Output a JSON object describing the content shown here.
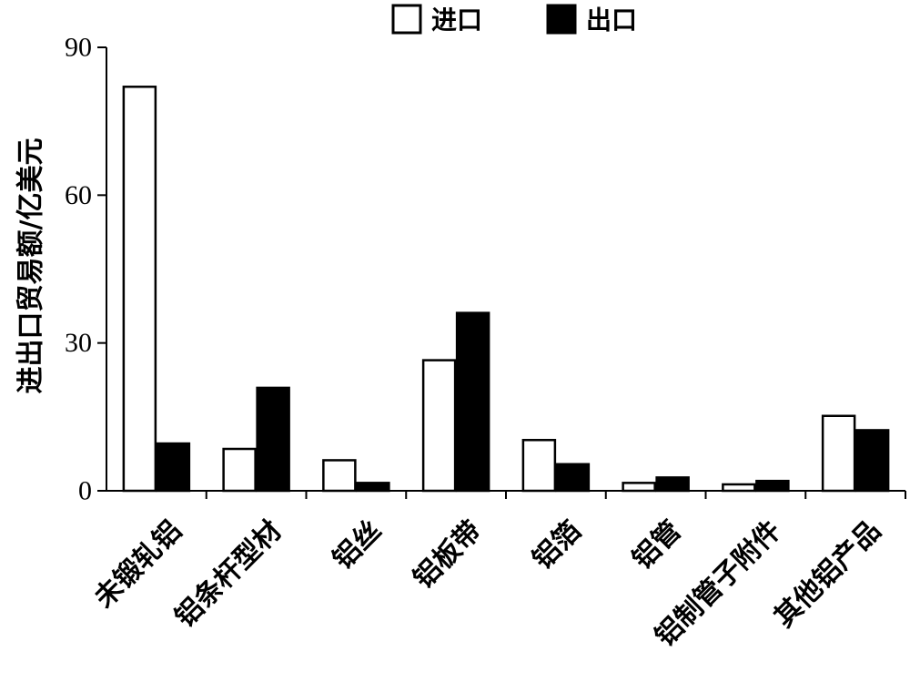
{
  "chart_data": {
    "type": "bar",
    "categories": [
      "未锻轧铝",
      "铝条杆型材",
      "铝丝",
      "铝板带",
      "铝箔",
      "铝管",
      "铝制管子附件",
      "其他铝产品"
    ],
    "series": [
      {
        "name": "进口",
        "values": [
          82,
          8.5,
          6.2,
          26.5,
          10.3,
          1.6,
          1.3,
          15.2
        ],
        "color": "#ffffff"
      },
      {
        "name": "出口",
        "values": [
          9.6,
          20.9,
          1.6,
          36.1,
          5.4,
          2.7,
          2.0,
          12.3
        ],
        "color": "#000000"
      }
    ],
    "ylabel": "进出口贸易额/亿美元",
    "xlabel": "",
    "ylim": [
      0,
      90
    ],
    "yticks": [
      0,
      30,
      60,
      90
    ],
    "legend_position": "top",
    "grid": false
  }
}
